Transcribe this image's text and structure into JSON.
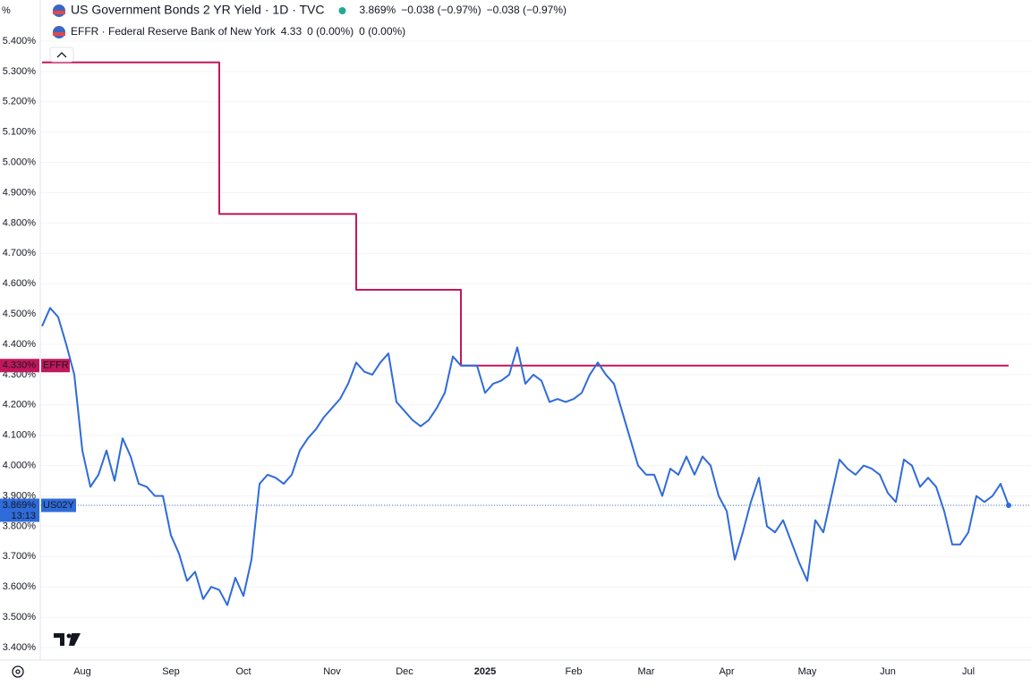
{
  "chart_data": {
    "type": "line",
    "unit_label": "%",
    "categories": [
      null,
      null,
      null,
      null,
      null,
      "Aug",
      null,
      null,
      null,
      null,
      null,
      null,
      null,
      null,
      null,
      null,
      "Sep",
      null,
      null,
      null,
      null,
      null,
      null,
      null,
      null,
      "Oct",
      null,
      null,
      null,
      null,
      null,
      null,
      null,
      null,
      null,
      null,
      "Nov",
      null,
      null,
      null,
      null,
      null,
      null,
      null,
      null,
      "Dec",
      null,
      null,
      null,
      null,
      null,
      null,
      null,
      null,
      null,
      "2025",
      null,
      null,
      null,
      null,
      null,
      null,
      null,
      null,
      null,
      null,
      "Feb",
      null,
      null,
      null,
      null,
      null,
      null,
      null,
      null,
      "Mar",
      null,
      null,
      null,
      null,
      null,
      null,
      null,
      null,
      null,
      "Apr",
      null,
      null,
      null,
      null,
      null,
      null,
      null,
      null,
      null,
      "May",
      null,
      null,
      null,
      null,
      null,
      null,
      null,
      null,
      null,
      "Jun",
      null,
      null,
      null,
      null,
      null,
      null,
      null,
      null,
      null,
      "Jul",
      null,
      null,
      null,
      null,
      null
    ],
    "series": [
      {
        "name": "US Government Bonds 2 YR Yield · 1D · TVC",
        "color": "#2f6bd9",
        "legend_values": [
          "3.869%",
          "−0.038 (−0.97%)",
          "−0.038 (−0.97%)"
        ],
        "tag": "US02Y",
        "tag_value": "3.869%",
        "countdown": "13:13",
        "values": [
          4.46,
          4.52,
          4.49,
          4.4,
          4.3,
          4.05,
          3.93,
          3.97,
          4.05,
          3.95,
          4.09,
          4.03,
          3.94,
          3.93,
          3.9,
          3.9,
          3.77,
          3.71,
          3.62,
          3.65,
          3.56,
          3.6,
          3.59,
          3.54,
          3.63,
          3.57,
          3.69,
          3.94,
          3.97,
          3.96,
          3.94,
          3.97,
          4.05,
          4.09,
          4.12,
          4.16,
          4.19,
          4.22,
          4.27,
          4.34,
          4.31,
          4.3,
          4.34,
          4.37,
          4.21,
          4.18,
          4.15,
          4.13,
          4.15,
          4.19,
          4.24,
          4.36,
          4.33,
          4.33,
          4.33,
          4.24,
          4.27,
          4.28,
          4.3,
          4.39,
          4.27,
          4.3,
          4.28,
          4.21,
          4.22,
          4.21,
          4.22,
          4.24,
          4.3,
          4.34,
          4.3,
          4.27,
          4.18,
          4.09,
          4.0,
          3.97,
          3.97,
          3.9,
          3.99,
          3.97,
          4.03,
          3.97,
          4.03,
          4.0,
          3.9,
          3.85,
          3.69,
          3.78,
          3.88,
          3.96,
          3.8,
          3.78,
          3.82,
          3.75,
          3.68,
          3.62,
          3.82,
          3.78,
          3.9,
          4.02,
          3.99,
          3.97,
          4.0,
          3.99,
          3.97,
          3.91,
          3.88,
          4.02,
          4.0,
          3.93,
          3.96,
          3.93,
          3.85,
          3.74,
          3.74,
          3.78,
          3.9,
          3.88,
          3.9,
          3.94,
          3.869
        ]
      },
      {
        "name": "EFFR · Federal Reserve Bank of New York",
        "color": "#c2185b",
        "step": true,
        "legend_values": [
          "4.33",
          "0 (0.00%)",
          "0 (0.00%)"
        ],
        "tag": "EFFR",
        "tag_value": "4.330%",
        "values": [
          5.33,
          5.33,
          5.33,
          5.33,
          5.33,
          5.33,
          5.33,
          5.33,
          5.33,
          5.33,
          5.33,
          5.33,
          5.33,
          5.33,
          5.33,
          5.33,
          5.33,
          5.33,
          5.33,
          5.33,
          5.33,
          5.33,
          4.83,
          4.83,
          4.83,
          4.83,
          4.83,
          4.83,
          4.83,
          4.83,
          4.83,
          4.83,
          4.83,
          4.83,
          4.83,
          4.83,
          4.83,
          4.83,
          4.83,
          4.58,
          4.58,
          4.58,
          4.58,
          4.58,
          4.58,
          4.58,
          4.58,
          4.58,
          4.58,
          4.58,
          4.58,
          4.58,
          4.33,
          4.33,
          4.33,
          4.33,
          4.33,
          4.33,
          4.33,
          4.33,
          4.33,
          4.33,
          4.33,
          4.33,
          4.33,
          4.33,
          4.33,
          4.33,
          4.33,
          4.33,
          4.33,
          4.33,
          4.33,
          4.33,
          4.33,
          4.33,
          4.33,
          4.33,
          4.33,
          4.33,
          4.33,
          4.33,
          4.33,
          4.33,
          4.33,
          4.33,
          4.33,
          4.33,
          4.33,
          4.33,
          4.33,
          4.33,
          4.33,
          4.33,
          4.33,
          4.33,
          4.33,
          4.33,
          4.33,
          4.33,
          4.33,
          4.33,
          4.33,
          4.33,
          4.33,
          4.33,
          4.33,
          4.33,
          4.33,
          4.33,
          4.33,
          4.33,
          4.33,
          4.33,
          4.33,
          4.33,
          4.33,
          4.33,
          4.33,
          4.33,
          4.33
        ]
      }
    ],
    "ylim": [
      3.4,
      5.4
    ],
    "yticks": [
      {
        "value": 3.4,
        "label": "3.400%"
      },
      {
        "value": 3.5,
        "label": "3.500%"
      },
      {
        "value": 3.6,
        "label": "3.600%"
      },
      {
        "value": 3.7,
        "label": "3.700%"
      },
      {
        "value": 3.8,
        "label": "3.800%"
      },
      {
        "value": 3.9,
        "label": "3.900%"
      },
      {
        "value": 4.0,
        "label": "4.000%"
      },
      {
        "value": 4.1,
        "label": "4.100%"
      },
      {
        "value": 4.2,
        "label": "4.200%"
      },
      {
        "value": 4.3,
        "label": "4.300%"
      },
      {
        "value": 4.4,
        "label": "4.400%"
      },
      {
        "value": 4.5,
        "label": "4.500%"
      },
      {
        "value": 4.6,
        "label": "4.600%"
      },
      {
        "value": 4.7,
        "label": "4.700%"
      },
      {
        "value": 4.8,
        "label": "4.800%"
      },
      {
        "value": 4.9,
        "label": "4.900%"
      },
      {
        "value": 5.0,
        "label": "5.000%"
      },
      {
        "value": 5.1,
        "label": "5.100%"
      },
      {
        "value": 5.2,
        "label": "5.200%"
      },
      {
        "value": 5.3,
        "label": "5.300%"
      },
      {
        "value": 5.4,
        "label": "5.400%"
      }
    ],
    "grid": true
  }
}
